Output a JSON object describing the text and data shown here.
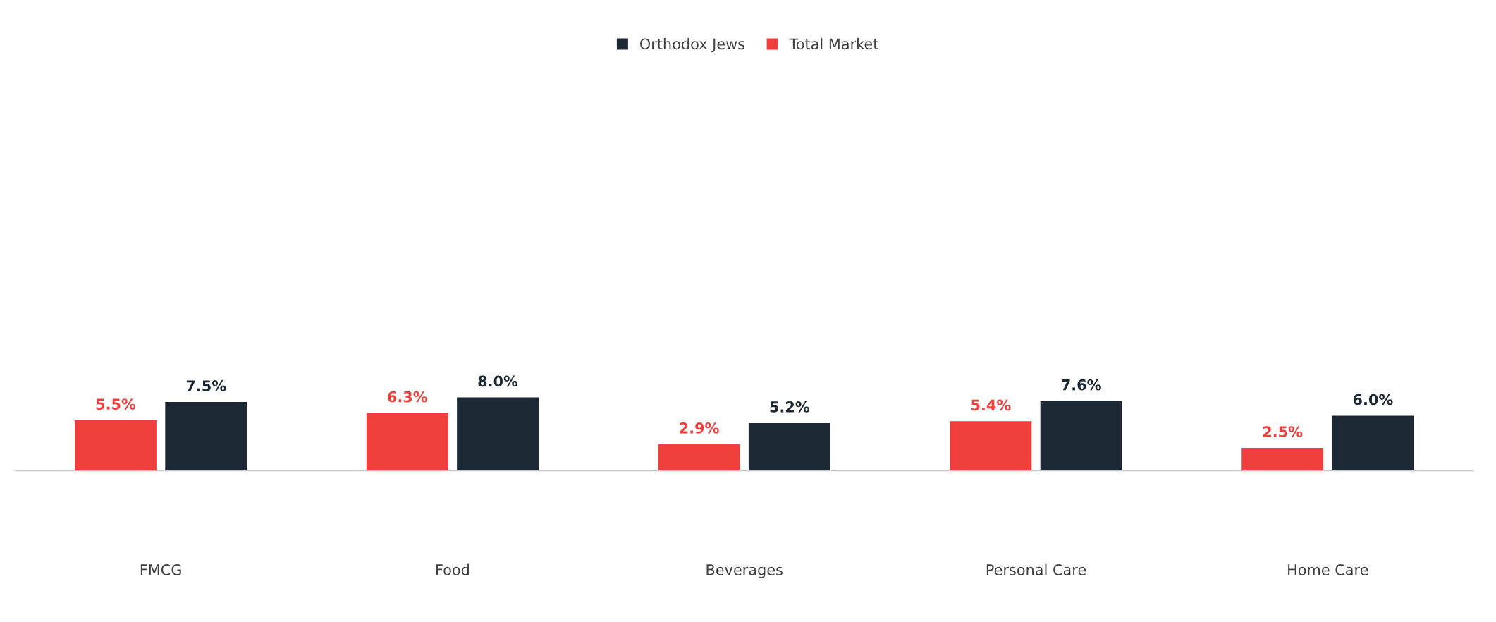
{
  "chart_data": {
    "type": "bar",
    "categories": [
      "FMCG",
      "Food",
      "Beverages",
      "Personal Care",
      "Home Care"
    ],
    "series": [
      {
        "name": "Total Market",
        "color": "#ef3f3d",
        "values": [
          5.5,
          6.3,
          2.9,
          5.4,
          2.5
        ],
        "value_labels": [
          "5.5%",
          "6.3%",
          "2.9%",
          "5.4%",
          "2.5%"
        ]
      },
      {
        "name": "Orthodox Jews",
        "color": "#1c2833",
        "values": [
          7.5,
          8.0,
          5.2,
          7.6,
          6.0
        ],
        "value_labels": [
          "7.5%",
          "8.0%",
          "5.2%",
          "7.6%",
          "6.0%"
        ]
      }
    ],
    "legend": "top",
    "grid": false
  }
}
